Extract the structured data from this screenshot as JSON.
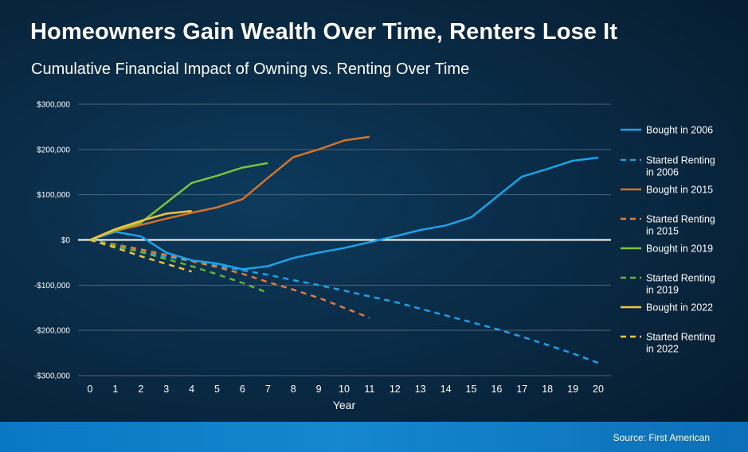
{
  "header": {
    "title": "Homeowners Gain Wealth Over Time, Renters Lose It",
    "subtitle": "Cumulative Financial Impact of Owning vs. Renting Over Time"
  },
  "footer": {
    "source": "Source: First American"
  },
  "chart_data": {
    "type": "line",
    "title": "Homeowners Gain Wealth Over Time, Renters Lose It",
    "subtitle": "Cumulative Financial Impact of Owning vs. Renting Over Time",
    "xlabel": "Year",
    "ylabel": "",
    "xlim": [
      0,
      20
    ],
    "ylim": [
      -300000,
      300000
    ],
    "x_ticks": [
      "0",
      "1",
      "2",
      "3",
      "4",
      "5",
      "6",
      "7",
      "8",
      "9",
      "10",
      "11",
      "12",
      "13",
      "14",
      "15",
      "16",
      "17",
      "18",
      "19",
      "20"
    ],
    "y_ticks": [
      {
        "value": 300000,
        "label": "$300,000"
      },
      {
        "value": 200000,
        "label": "$200,000"
      },
      {
        "value": 100000,
        "label": "$100,000"
      },
      {
        "value": 0,
        "label": "$0"
      },
      {
        "value": -100000,
        "label": "-$100,000"
      },
      {
        "value": -200000,
        "label": "-$200,000"
      },
      {
        "value": -300000,
        "label": "-$300,000"
      }
    ],
    "grid": true,
    "legend_position": "right",
    "series": [
      {
        "name": "Bought in 2006",
        "color": "#1ba3e8",
        "dash": false,
        "x": [
          0,
          1,
          2,
          3,
          4,
          5,
          6,
          7,
          8,
          9,
          10,
          11,
          12,
          13,
          14,
          15,
          16,
          17,
          18,
          19,
          20
        ],
        "y": [
          0,
          18000,
          8000,
          -28000,
          -45000,
          -52000,
          -65000,
          -58000,
          -40000,
          -28000,
          -18000,
          -5000,
          8000,
          22000,
          32000,
          50000,
          95000,
          140000,
          157000,
          175000,
          182000
        ]
      },
      {
        "name": "Started Renting in 2006",
        "color": "#1ba3e8",
        "dash": true,
        "x": [
          0,
          1,
          2,
          3,
          4,
          5,
          6,
          7,
          8,
          9,
          10,
          11,
          12,
          13,
          14,
          15,
          16,
          17,
          18,
          19,
          20
        ],
        "y": [
          0,
          -14000,
          -26000,
          -37000,
          -47000,
          -57000,
          -67000,
          -77000,
          -89000,
          -100000,
          -112000,
          -125000,
          -137000,
          -152000,
          -167000,
          -182000,
          -197000,
          -214000,
          -232000,
          -251000,
          -272000
        ]
      },
      {
        "name": "Bought in 2015",
        "color": "#d4722b",
        "dash": false,
        "x": [
          0,
          1,
          2,
          3,
          4,
          5,
          6,
          7,
          8,
          9,
          10,
          11
        ],
        "y": [
          0,
          20000,
          33000,
          47000,
          60000,
          72000,
          90000,
          137000,
          183000,
          200000,
          220000,
          228000
        ]
      },
      {
        "name": "Started Renting in 2015",
        "color": "#e07b3a",
        "dash": true,
        "x": [
          0,
          1,
          2,
          3,
          4,
          5,
          6,
          7,
          8,
          9,
          10,
          11
        ],
        "y": [
          0,
          -10000,
          -21000,
          -33000,
          -47000,
          -60000,
          -75000,
          -93000,
          -110000,
          -128000,
          -150000,
          -172000
        ]
      },
      {
        "name": "Bought in 2019",
        "color": "#7cc23a",
        "dash": false,
        "x": [
          0,
          1,
          2,
          3,
          4,
          5,
          6,
          7
        ],
        "y": [
          0,
          22000,
          38000,
          82000,
          126000,
          142000,
          160000,
          170000
        ]
      },
      {
        "name": "Started Renting in 2019",
        "color": "#6ab32f",
        "dash": true,
        "x": [
          0,
          1,
          2,
          3,
          4,
          5,
          6,
          7
        ],
        "y": [
          0,
          -13000,
          -27000,
          -42000,
          -58000,
          -76000,
          -95000,
          -117000
        ]
      },
      {
        "name": "Bought in 2022",
        "color": "#f0c43c",
        "dash": false,
        "x": [
          0,
          1,
          2,
          3,
          4
        ],
        "y": [
          0,
          24000,
          42000,
          58000,
          64000
        ]
      },
      {
        "name": "Started Renting in 2022",
        "color": "#f0c43c",
        "dash": true,
        "x": [
          0,
          1,
          2,
          3,
          4
        ],
        "y": [
          0,
          -17000,
          -36000,
          -53000,
          -70000
        ]
      }
    ]
  }
}
